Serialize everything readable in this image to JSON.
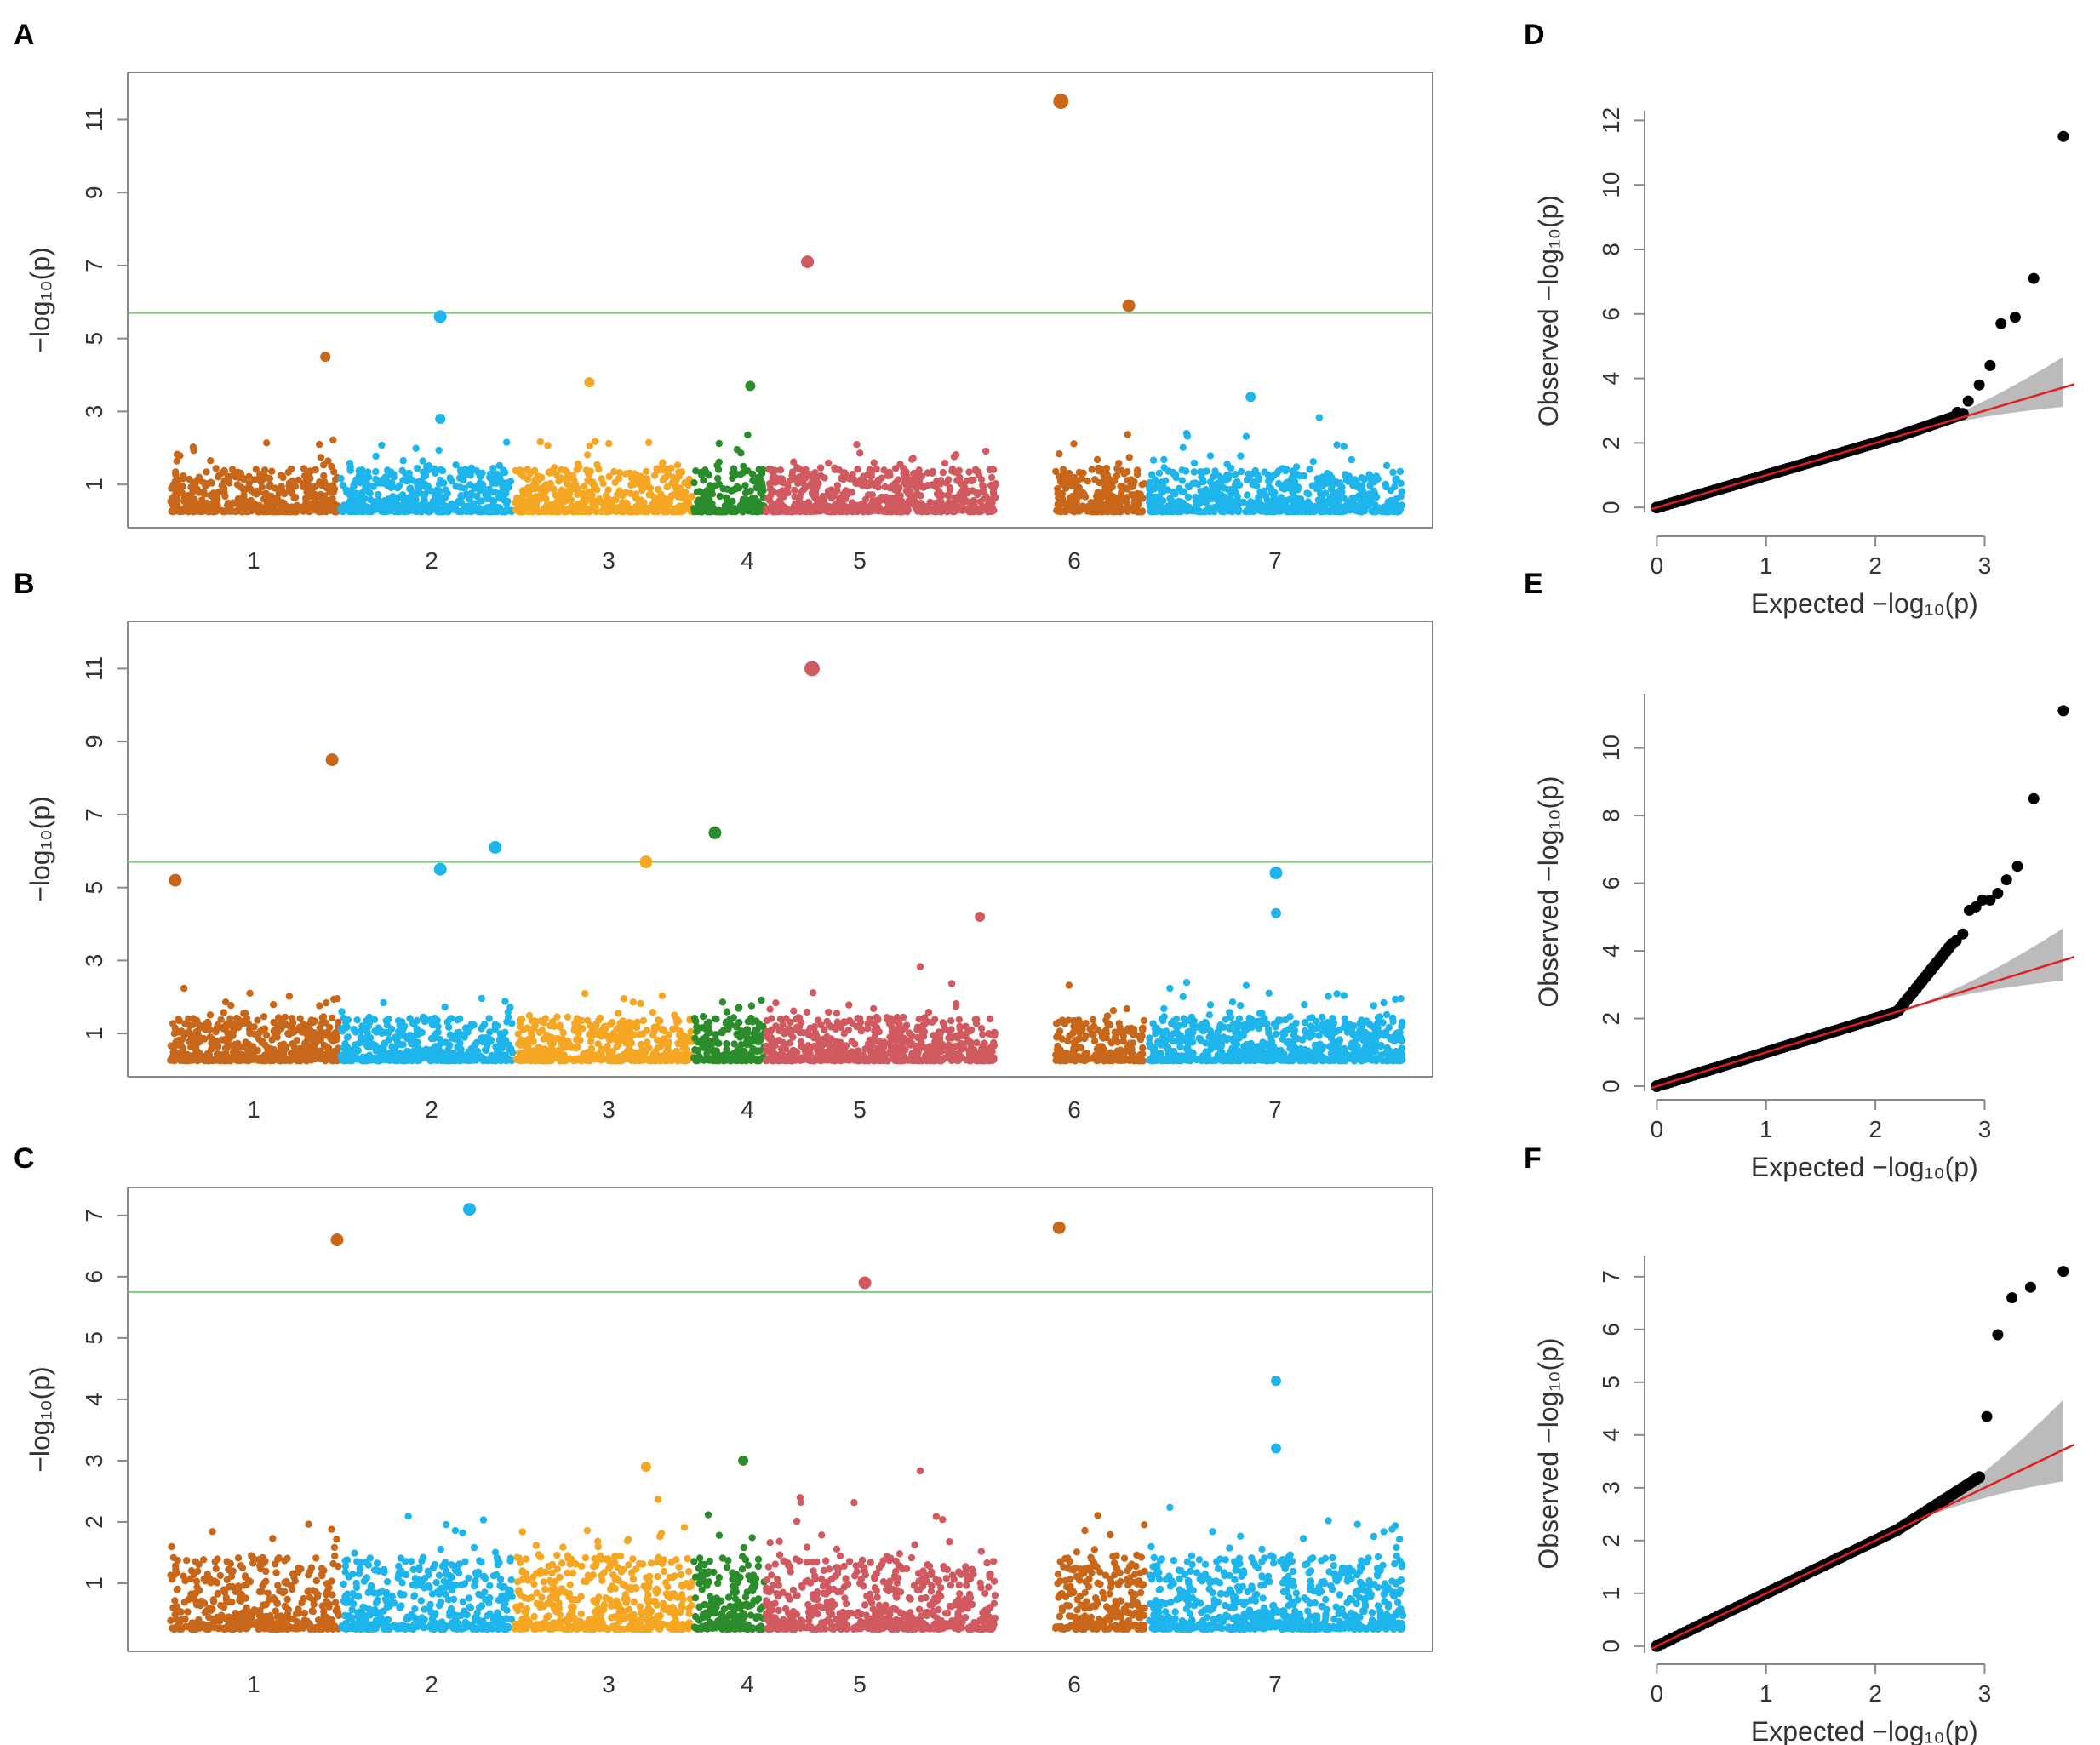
{
  "figure": {
    "panel_labels": [
      "A",
      "B",
      "C",
      "D",
      "E",
      "F"
    ],
    "manhattan_ylabel": "−log₁₀(p)",
    "qq_ylabel": "Observed  −log₁₀(p)",
    "qq_xlabel": "Expected  −log₁₀(p)",
    "colors": {
      "chr1": "#C8661A",
      "chr2": "#1EB4EC",
      "chr3": "#F5A623",
      "chr4": "#2A8C2A",
      "chr5": "#D05A5F",
      "chr6": "#C8661A",
      "chr7": "#1EB4EC",
      "threshold": "#7FCB7F",
      "qq_line": "#E02020",
      "qq_band": "#BBBBBB",
      "qq_point": "#000000"
    }
  },
  "chart_data": [
    {
      "panel": "A",
      "type": "scatter",
      "subtype": "manhattan",
      "ylabel": "−log₁₀(p)",
      "chromosomes": [
        "1",
        "2",
        "3",
        "4",
        "5",
        "6",
        "7"
      ],
      "yticks": [
        1,
        3,
        5,
        7,
        9,
        11
      ],
      "ylim": [
        0,
        12.2
      ],
      "threshold": 5.7,
      "peaks": [
        {
          "chr": "1",
          "pos": 0.92,
          "p": 4.5
        },
        {
          "chr": "2",
          "pos": 0.58,
          "p": 5.6
        },
        {
          "chr": "2",
          "pos": 0.58,
          "p": 2.8
        },
        {
          "chr": "3",
          "pos": 0.42,
          "p": 3.8
        },
        {
          "chr": "4",
          "pos": 0.8,
          "p": 3.7
        },
        {
          "chr": "5",
          "pos": 0.18,
          "p": 7.1
        },
        {
          "chr": "6",
          "pos": 0.06,
          "p": 11.5
        },
        {
          "chr": "6",
          "pos": 0.82,
          "p": 5.9
        },
        {
          "chr": "7",
          "pos": 0.4,
          "p": 3.4
        }
      ]
    },
    {
      "panel": "B",
      "type": "scatter",
      "subtype": "manhattan",
      "ylabel": "−log₁₀(p)",
      "chromosomes": [
        "1",
        "2",
        "3",
        "4",
        "5",
        "6",
        "7"
      ],
      "yticks": [
        1,
        3,
        5,
        7,
        9,
        11
      ],
      "ylim": [
        0,
        12.2
      ],
      "threshold": 5.7,
      "peaks": [
        {
          "chr": "1",
          "pos": 0.03,
          "p": 5.2
        },
        {
          "chr": "1",
          "pos": 0.96,
          "p": 8.5
        },
        {
          "chr": "2",
          "pos": 0.58,
          "p": 5.5
        },
        {
          "chr": "2",
          "pos": 0.9,
          "p": 6.1
        },
        {
          "chr": "3",
          "pos": 0.74,
          "p": 5.7
        },
        {
          "chr": "4",
          "pos": 0.3,
          "p": 6.5
        },
        {
          "chr": "5",
          "pos": 0.2,
          "p": 11.0
        },
        {
          "chr": "5",
          "pos": 0.93,
          "p": 4.2
        },
        {
          "chr": "7",
          "pos": 0.5,
          "p": 5.4
        },
        {
          "chr": "7",
          "pos": 0.5,
          "p": 4.3
        }
      ]
    },
    {
      "panel": "C",
      "type": "scatter",
      "subtype": "manhattan",
      "ylabel": "−log₁₀(p)",
      "chromosomes": [
        "1",
        "2",
        "3",
        "4",
        "5",
        "6",
        "7"
      ],
      "yticks": [
        1,
        2,
        3,
        4,
        5,
        6,
        7
      ],
      "ylim": [
        0,
        7.4
      ],
      "threshold": 5.75,
      "peaks": [
        {
          "chr": "1",
          "pos": 0.99,
          "p": 6.6
        },
        {
          "chr": "2",
          "pos": 0.75,
          "p": 7.1
        },
        {
          "chr": "3",
          "pos": 0.74,
          "p": 2.9
        },
        {
          "chr": "4",
          "pos": 0.7,
          "p": 3.0
        },
        {
          "chr": "5",
          "pos": 0.43,
          "p": 5.9
        },
        {
          "chr": "6",
          "pos": 0.04,
          "p": 6.8
        },
        {
          "chr": "7",
          "pos": 0.5,
          "p": 4.3
        },
        {
          "chr": "7",
          "pos": 0.5,
          "p": 3.2
        }
      ]
    },
    {
      "panel": "D",
      "type": "scatter",
      "subtype": "qq",
      "xlabel": "Expected  −log₁₀(p)",
      "ylabel": "Observed  −log₁₀(p)",
      "xlim": [
        -0.05,
        3.9
      ],
      "ylim": [
        -0.1,
        12.3
      ],
      "xticks": [
        0,
        1,
        2,
        3
      ],
      "yticks": [
        0,
        2,
        4,
        6,
        8,
        10,
        12
      ],
      "bulk_end": [
        2.8,
        2.9
      ],
      "slope": 1.0,
      "tail": [
        [
          2.75,
          2.95
        ],
        [
          2.85,
          3.3
        ],
        [
          2.95,
          3.8
        ],
        [
          3.05,
          4.4
        ],
        [
          3.15,
          5.7
        ],
        [
          3.28,
          5.9
        ],
        [
          3.45,
          7.1
        ],
        [
          3.72,
          11.5
        ]
      ]
    },
    {
      "panel": "E",
      "type": "scatter",
      "subtype": "qq",
      "xlabel": "Expected  −log₁₀(p)",
      "ylabel": "Observed  −log₁₀(p)",
      "xlim": [
        -0.05,
        3.9
      ],
      "ylim": [
        -0.1,
        11.6
      ],
      "xticks": [
        0,
        1,
        2,
        3
      ],
      "yticks": [
        0,
        2,
        4,
        6,
        8,
        10
      ],
      "bulk_end": [
        2.7,
        4.2
      ],
      "slope": 1.0,
      "tail": [
        [
          2.74,
          4.3
        ],
        [
          2.8,
          4.5
        ],
        [
          2.86,
          5.2
        ],
        [
          2.92,
          5.3
        ],
        [
          2.98,
          5.5
        ],
        [
          3.05,
          5.5
        ],
        [
          3.12,
          5.7
        ],
        [
          3.2,
          6.1
        ],
        [
          3.3,
          6.5
        ],
        [
          3.45,
          8.5
        ],
        [
          3.72,
          11.1
        ]
      ]
    },
    {
      "panel": "F",
      "type": "scatter",
      "subtype": "qq",
      "xlabel": "Expected  −log₁₀(p)",
      "ylabel": "Observed  −log₁₀(p)",
      "xlim": [
        -0.05,
        3.9
      ],
      "ylim": [
        -0.1,
        7.4
      ],
      "xticks": [
        0,
        1,
        2,
        3
      ],
      "yticks": [
        0,
        1,
        2,
        3,
        4,
        5,
        6,
        7
      ],
      "bulk_end": [
        2.95,
        3.2
      ],
      "slope": 1.0,
      "tail": [
        [
          3.02,
          4.35
        ],
        [
          3.12,
          5.9
        ],
        [
          3.25,
          6.6
        ],
        [
          3.42,
          6.8
        ],
        [
          3.72,
          7.1
        ]
      ]
    }
  ]
}
